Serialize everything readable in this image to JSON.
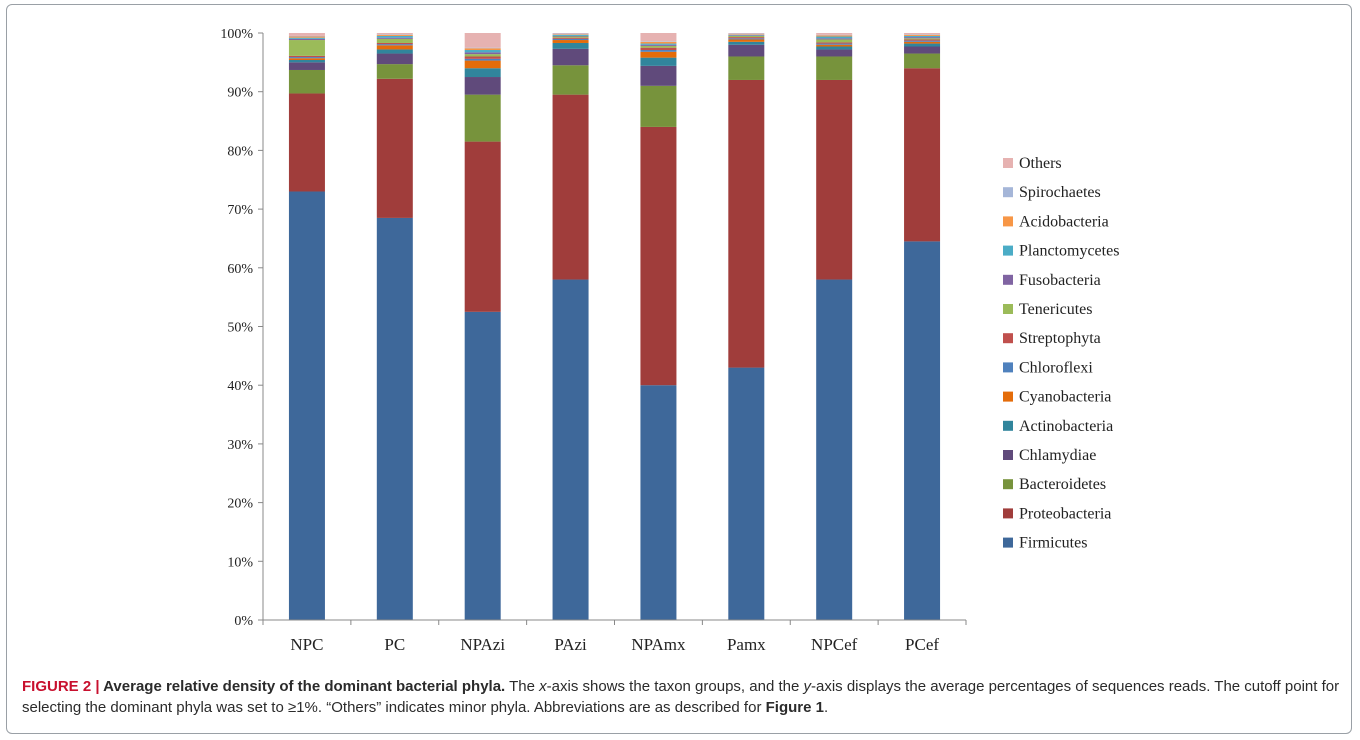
{
  "chart_data": {
    "type": "bar",
    "stacked": true,
    "percent": true,
    "categories": [
      "NPC",
      "PC",
      "NPAzi",
      "PAzi",
      "NPAmx",
      "Pamx",
      "NPCef",
      "PCef"
    ],
    "ylim": [
      0,
      100
    ],
    "yticks": [
      "0%",
      "10%",
      "20%",
      "30%",
      "40%",
      "50%",
      "60%",
      "70%",
      "80%",
      "90%",
      "100%"
    ],
    "legend_position": "right",
    "grid": false,
    "series": [
      {
        "name": "Firmicutes",
        "color": "#3e689a",
        "values": [
          73.0,
          68.5,
          52.5,
          58.0,
          40.0,
          43.0,
          58.0,
          64.5
        ]
      },
      {
        "name": "Proteobacteria",
        "color": "#a03d3b",
        "values": [
          16.7,
          23.7,
          29.0,
          31.5,
          44.0,
          49.0,
          34.0,
          29.5
        ]
      },
      {
        "name": "Bacteroidetes",
        "color": "#77933c",
        "values": [
          4.0,
          2.5,
          8.0,
          5.0,
          7.0,
          4.0,
          4.0,
          2.5
        ]
      },
      {
        "name": "Chlamydiae",
        "color": "#604a7b",
        "values": [
          1.3,
          1.8,
          3.0,
          2.8,
          3.4,
          2.0,
          1.2,
          1.2
        ]
      },
      {
        "name": "Actinobacteria",
        "color": "#31859c",
        "values": [
          0.4,
          0.7,
          1.5,
          1.0,
          1.4,
          0.5,
          0.5,
          0.5
        ]
      },
      {
        "name": "Cyanobacteria",
        "color": "#e46c0a",
        "values": [
          0.3,
          0.7,
          1.3,
          0.5,
          1.0,
          0.4,
          0.3,
          0.3
        ]
      },
      {
        "name": "Chloroflexi",
        "color": "#4f81bd",
        "values": [
          0.2,
          0.2,
          0.3,
          0.2,
          0.3,
          0.2,
          0.2,
          0.2
        ]
      },
      {
        "name": "Streptophyta",
        "color": "#c0504d",
        "values": [
          0.2,
          0.2,
          0.4,
          0.2,
          0.4,
          0.2,
          0.2,
          0.2
        ]
      },
      {
        "name": "Tenericutes",
        "color": "#9bbb59",
        "values": [
          2.7,
          0.7,
          0.4,
          0.2,
          0.3,
          0.2,
          0.5,
          0.2
        ]
      },
      {
        "name": "Fusobacteria",
        "color": "#8064a2",
        "values": [
          0.2,
          0.2,
          0.3,
          0.1,
          0.2,
          0.1,
          0.2,
          0.2
        ]
      },
      {
        "name": "Planctomycetes",
        "color": "#4bacc6",
        "values": [
          0.2,
          0.3,
          0.4,
          0.2,
          0.2,
          0.1,
          0.3,
          0.2
        ]
      },
      {
        "name": "Acidobacteria",
        "color": "#f79646",
        "values": [
          0.2,
          0.2,
          0.3,
          0.1,
          0.3,
          0.1,
          0.2,
          0.2
        ]
      },
      {
        "name": "Spirochaetes",
        "color": "#a5b6d8",
        "values": [
          0.1,
          0.1,
          0.1,
          0.1,
          0.1,
          0.1,
          0.1,
          0.1
        ]
      },
      {
        "name": "Others",
        "color": "#e6b2b1",
        "values": [
          0.5,
          0.2,
          2.5,
          0.1,
          1.4,
          0.1,
          0.3,
          0.2
        ]
      }
    ]
  },
  "caption": {
    "lead": "FIGURE 2 | ",
    "title": "Average relative density of the dominant bacterial phyla.",
    "text_1": " The ",
    "x_italic": "x",
    "text_2": "-axis shows the taxon groups, and the ",
    "y_italic": "y",
    "text_3": "-axis displays the average percentages of sequences reads. The cutoff point for selecting the dominant phyla was set to ≥1%. “Others” indicates minor phyla. Abbreviations are as described for ",
    "ref": "Figure 1",
    "text_4": "."
  }
}
